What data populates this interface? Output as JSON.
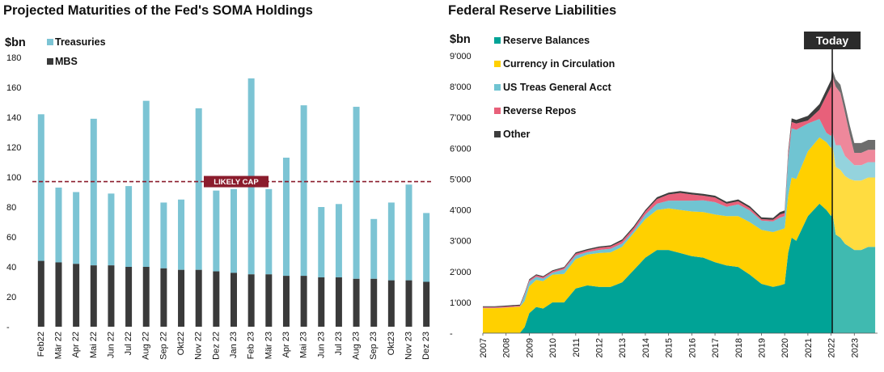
{
  "left_title": "Projected Maturities of the Fed's SOMA Holdings",
  "right_title": "Federal Reserve Liabilities",
  "colors": {
    "treasuries": "#7cc4d4",
    "mbs": "#3a3a3a",
    "cap": "#8b1c2c",
    "reserve_balances": "#00a396",
    "currency": "#ffd000",
    "tga": "#70c4d2",
    "reverse_repos": "#e8607a",
    "other": "#3d3d3d",
    "today_box": "#2b2b2b"
  },
  "chart_data": [
    {
      "type": "bar",
      "stacked": true,
      "unit_label": "$bn",
      "categories": [
        "Feb22",
        "Mär 22",
        "Apr 22",
        "Mai 22",
        "Jun 22",
        "Jul 22",
        "Aug 22",
        "Sep 22",
        "Okt22",
        "Nov 22",
        "Dez 22",
        "Jan 23",
        "Feb 23",
        "Mär 23",
        "Apr 23",
        "Mai 23",
        "Jun 23",
        "Jul 23",
        "Aug 23",
        "Sep 23",
        "Okt23",
        "Nov 23",
        "Dez 23"
      ],
      "series": [
        {
          "name": "MBS",
          "values": [
            44,
            43,
            42,
            41,
            41,
            40,
            40,
            39,
            38,
            38,
            37,
            36,
            35,
            35,
            34,
            34,
            33,
            33,
            32,
            32,
            31,
            31,
            30
          ]
        },
        {
          "name": "Treasuries",
          "values": [
            98,
            50,
            48,
            98,
            48,
            54,
            111,
            44,
            47,
            108,
            54,
            56,
            131,
            57,
            79,
            114,
            47,
            49,
            115,
            40,
            52,
            64,
            46
          ]
        }
      ],
      "ylim": [
        0,
        180
      ],
      "yticks": [
        "-",
        "20",
        "40",
        "60",
        "80",
        "100",
        "120",
        "140",
        "160",
        "180"
      ],
      "reference_line": {
        "value": 97,
        "label": "LIKELY CAP"
      },
      "legend": "top-left"
    },
    {
      "type": "area",
      "stacked": true,
      "unit_label": "$bn",
      "x": [
        2007.0,
        2007.5,
        2008.0,
        2008.6,
        2008.8,
        2009.0,
        2009.3,
        2009.6,
        2010.0,
        2010.5,
        2011.0,
        2011.5,
        2012.0,
        2012.5,
        2013.0,
        2013.5,
        2014.0,
        2014.5,
        2015.0,
        2015.5,
        2016.0,
        2016.5,
        2017.0,
        2017.5,
        2018.0,
        2018.5,
        2019.0,
        2019.5,
        2019.8,
        2020.0,
        2020.15,
        2020.3,
        2020.5,
        2021.0,
        2021.5,
        2021.8,
        2022.0,
        2022.05,
        2022.2,
        2022.4,
        2022.6,
        2022.8,
        2023.0,
        2023.3,
        2023.6,
        2023.9
      ],
      "series": [
        {
          "name": "Reserve Balances",
          "values": [
            10,
            10,
            10,
            10,
            200,
            650,
            850,
            800,
            1000,
            1000,
            1450,
            1550,
            1500,
            1500,
            1650,
            2050,
            2450,
            2700,
            2700,
            2600,
            2500,
            2450,
            2300,
            2200,
            2150,
            1900,
            1600,
            1500,
            1550,
            1600,
            2600,
            3100,
            3000,
            3800,
            4200,
            4000,
            3800,
            3950,
            3200,
            3100,
            2900,
            2800,
            2700,
            2700,
            2800,
            2800
          ]
        },
        {
          "name": "Currency in Circulation",
          "values": [
            800,
            800,
            820,
            850,
            840,
            870,
            880,
            890,
            900,
            920,
            950,
            1000,
            1100,
            1120,
            1150,
            1200,
            1250,
            1300,
            1350,
            1400,
            1450,
            1480,
            1550,
            1600,
            1650,
            1700,
            1750,
            1780,
            1800,
            1800,
            1850,
            1950,
            2000,
            2100,
            2150,
            2200,
            2200,
            2200,
            2200,
            2200,
            2200,
            2200,
            2250,
            2250,
            2250,
            2250
          ]
        },
        {
          "name": "US Treas General Acct",
          "values": [
            5,
            5,
            5,
            5,
            200,
            150,
            100,
            80,
            60,
            150,
            120,
            80,
            100,
            120,
            110,
            80,
            150,
            200,
            250,
            300,
            350,
            380,
            400,
            300,
            380,
            380,
            300,
            350,
            400,
            400,
            1200,
            1600,
            1600,
            900,
            600,
            300,
            400,
            400,
            700,
            800,
            650,
            600,
            500,
            500,
            500,
            500
          ]
        },
        {
          "name": "Reverse Repos",
          "values": [
            30,
            30,
            30,
            30,
            40,
            50,
            50,
            50,
            50,
            50,
            60,
            60,
            70,
            70,
            80,
            90,
            100,
            150,
            200,
            250,
            200,
            150,
            150,
            100,
            100,
            80,
            50,
            50,
            100,
            100,
            150,
            200,
            200,
            100,
            300,
            1200,
            1600,
            1800,
            1900,
            1700,
            1400,
            850,
            400,
            400,
            400,
            400
          ]
        },
        {
          "name": "Other",
          "values": [
            30,
            30,
            30,
            30,
            30,
            30,
            30,
            30,
            30,
            30,
            40,
            40,
            40,
            40,
            50,
            50,
            50,
            60,
            60,
            60,
            60,
            60,
            60,
            60,
            60,
            60,
            60,
            60,
            80,
            80,
            100,
            120,
            120,
            150,
            180,
            200,
            220,
            220,
            240,
            260,
            280,
            300,
            320,
            320,
            320,
            320
          ]
        }
      ],
      "ylim": [
        0,
        9000
      ],
      "yticks": [
        "-",
        "1'000",
        "2'000",
        "3'000",
        "4'000",
        "5'000",
        "6'000",
        "7'000",
        "8'000",
        "9'000"
      ],
      "xticks": [
        "2007",
        "2008",
        "2009",
        "2010",
        "2011",
        "2012",
        "2013",
        "2014",
        "2015",
        "2016",
        "2017",
        "2018",
        "2019",
        "2020",
        "2021",
        "2022",
        "2023"
      ],
      "xlim": [
        2007,
        2024
      ],
      "today_marker": {
        "x": 2022.05,
        "label": "Today"
      },
      "legend": "top-left"
    }
  ]
}
